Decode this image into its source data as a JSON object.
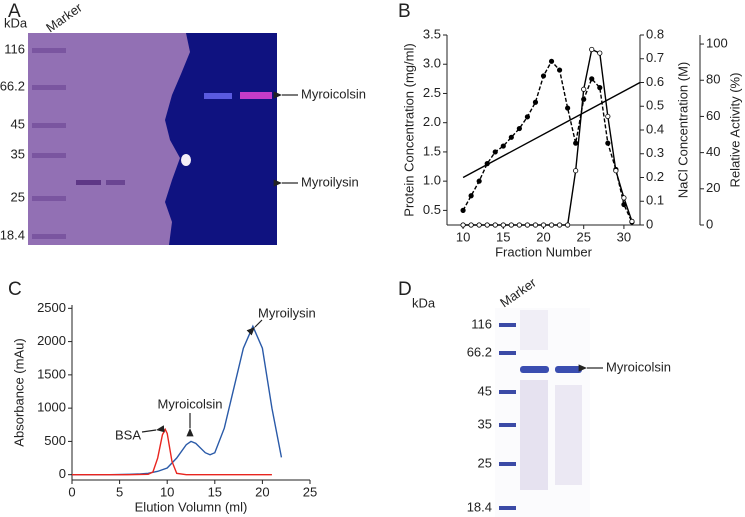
{
  "gel_a": {
    "panel": "A",
    "unit": "kDa",
    "lane_label": "Marker",
    "markers": [
      "116",
      "66.2",
      "45",
      "35",
      "25",
      "18.4"
    ],
    "bands": [
      "Myroicolsin",
      "Myroilysin"
    ]
  },
  "chart_data": [
    {
      "panel": "B",
      "type": "line",
      "xlabel": "Fraction Number",
      "ylabel": "Protein Concentration (mg/ml)",
      "y2label": "NaCl Concentration (M)",
      "y3label": "Relative Activity (%)",
      "xlim": [
        8,
        32
      ],
      "xticks": [
        10,
        15,
        20,
        25,
        30
      ],
      "ylim": [
        0.25,
        3.5
      ],
      "yticks": [
        {
          "value": 0.5,
          "label": "0.5"
        },
        {
          "value": 1,
          "label": "1.0"
        },
        {
          "value": 1.5,
          "label": "1.5"
        },
        {
          "value": 2,
          "label": "2.0"
        },
        {
          "value": 2.5,
          "label": "2.5"
        },
        {
          "value": 3,
          "label": "3.0"
        },
        {
          "value": 3.5,
          "label": "3.5"
        }
      ],
      "y2lim": [
        0,
        0.8
      ],
      "y2ticks": [
        0,
        0.1,
        0.2,
        0.3,
        0.4,
        0.5,
        0.6,
        0.7,
        0.8
      ],
      "y3lim": [
        0,
        105
      ],
      "y3ticks": [
        0,
        20,
        40,
        60,
        80,
        100
      ],
      "series": [
        {
          "color": "#000000",
          "marker": "filled",
          "x": [
            10,
            11,
            12,
            13,
            14,
            15,
            16,
            17,
            18,
            19,
            20,
            21,
            22,
            23,
            24,
            25,
            26,
            27,
            28,
            29,
            30,
            31
          ],
          "values": [
            0.5,
            0.75,
            1.0,
            1.3,
            1.5,
            1.6,
            1.75,
            1.9,
            2.1,
            2.35,
            2.8,
            3.05,
            2.9,
            2.25,
            1.65,
            2.4,
            2.75,
            2.6,
            1.65,
            1.2,
            0.6,
            0.3
          ],
          "dash": true
        },
        {
          "color": "#000000",
          "marker": "none",
          "axis": "y2",
          "x": [
            10,
            32
          ],
          "values": [
            0.2,
            0.6
          ]
        },
        {
          "color": "#000000",
          "marker": "open",
          "axis": "y3",
          "x": [
            10,
            11,
            12,
            13,
            14,
            15,
            16,
            17,
            18,
            19,
            20,
            21,
            22,
            23,
            24,
            25,
            26,
            27,
            28,
            29,
            30,
            31
          ],
          "values": [
            0,
            0,
            0,
            0,
            0,
            0,
            0,
            0,
            0,
            0,
            0,
            0,
            0,
            0,
            30,
            75,
            97,
            95,
            60,
            30,
            15,
            2
          ]
        }
      ]
    },
    {
      "panel": "C",
      "type": "line",
      "xlabel": "Elution Volumn (ml)",
      "ylabel": "Absorbance (mAu)",
      "xlim": [
        0,
        25
      ],
      "xticks": [
        0,
        5,
        10,
        15,
        20,
        25
      ],
      "ylim": [
        -80,
        2550
      ],
      "yticks": [
        0,
        500,
        1000,
        1500,
        2000,
        2500
      ],
      "annotations": [
        "Myroilysin",
        "Myroicolsin",
        "BSA"
      ],
      "series": [
        {
          "color": "#2a5aa8",
          "marker": "none",
          "x": [
            0,
            2,
            4,
            6,
            7,
            8,
            9,
            10,
            11,
            12,
            12.5,
            13,
            14,
            14.5,
            15,
            16,
            17,
            18,
            19,
            20,
            21,
            22
          ],
          "values": [
            0,
            0,
            0,
            5,
            10,
            20,
            50,
            100,
            250,
            450,
            500,
            470,
            330,
            300,
            330,
            700,
            1300,
            1900,
            2230,
            1900,
            1000,
            260
          ]
        },
        {
          "color": "#e8251f",
          "marker": "none",
          "x": [
            0,
            2,
            4,
            6,
            8,
            8.5,
            9,
            9.5,
            9.8,
            10,
            10.5,
            11,
            12,
            14,
            16,
            18,
            20,
            21
          ],
          "values": [
            0,
            0,
            0,
            0,
            5,
            40,
            250,
            600,
            680,
            620,
            200,
            20,
            0,
            0,
            0,
            0,
            0,
            0
          ]
        }
      ]
    }
  ],
  "gel_d": {
    "panel": "D",
    "unit": "kDa",
    "lane_label": "Marker",
    "markers": [
      "116",
      "66.2",
      "45",
      "35",
      "25",
      "18.4"
    ],
    "bands": [
      "Myroicolsin"
    ]
  }
}
